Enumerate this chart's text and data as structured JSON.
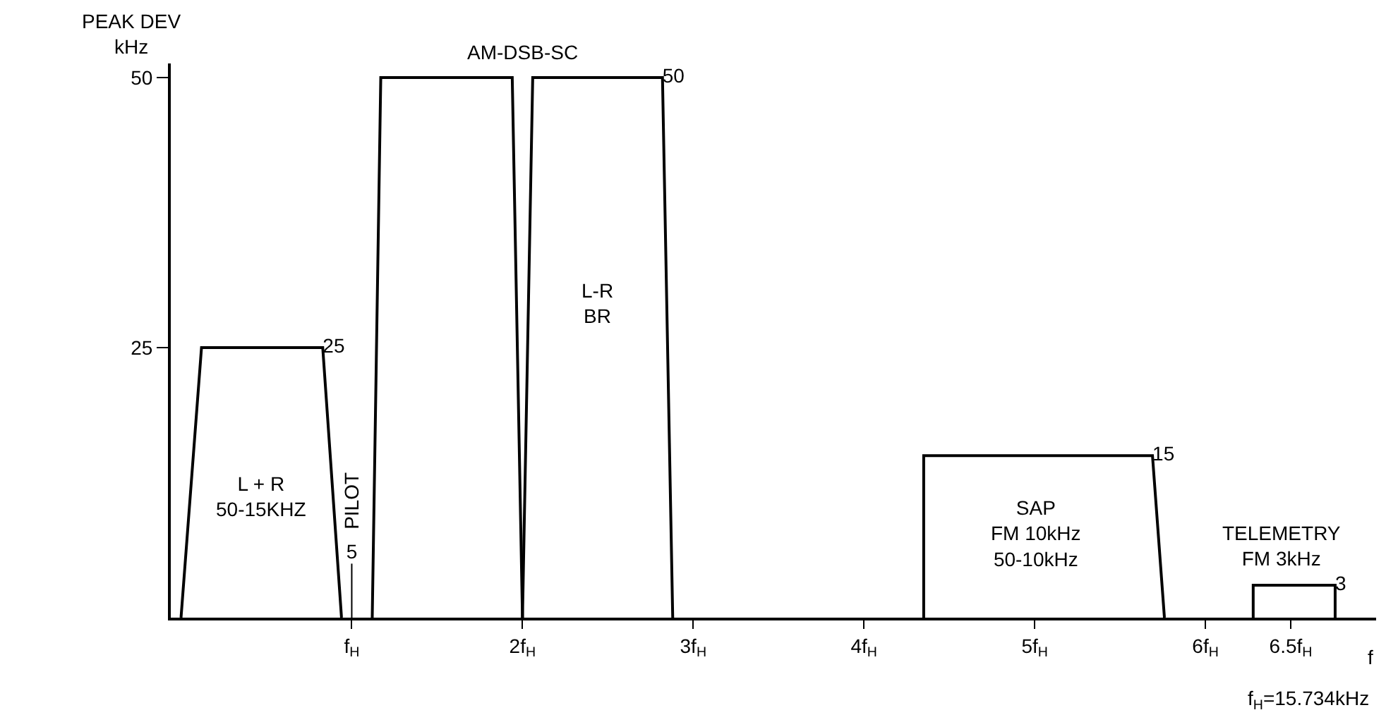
{
  "chart_data": {
    "type": "line",
    "ylabel": "PEAK DEV\nkHz",
    "xlabel": "f",
    "xlim": [
      -0.06,
      7.0
    ],
    "xticks": [
      {
        "value": 1,
        "label": "f$_{H}$"
      },
      {
        "value": 2,
        "label": "2f$_{H}$"
      },
      {
        "value": 3,
        "label": "3f$_{H}$"
      },
      {
        "value": 4,
        "label": "4f$_{H}$"
      },
      {
        "value": 5,
        "label": "5f$_{H}$"
      },
      {
        "value": 6,
        "label": "6f$_{H}$"
      },
      {
        "value": 6.5,
        "label": "6.5f$_{H}$"
      }
    ],
    "ylim": [
      0,
      51.3
    ],
    "yticks": [
      25,
      50
    ],
    "grid": false,
    "legend": false,
    "marker": "none",
    "line_style": "solid",
    "series": [
      {
        "color": "#000000",
        "x": [
          0,
          0.12,
          0.83,
          0.94
        ],
        "values": [
          0,
          25,
          25,
          0
        ],
        "value_labels": [
          null,
          null,
          "25",
          null
        ]
      },
      {
        "name": "PILOT",
        "color": "#000000",
        "x": [
          1.0,
          1.0
        ],
        "values": [
          0,
          5
        ],
        "value_labels": [
          null,
          "5"
        ]
      },
      {
        "color": "#000000",
        "x": [
          1.12,
          1.17,
          1.94,
          2.0
        ],
        "values": [
          0,
          50,
          50,
          0
        ],
        "value_labels": [
          null,
          null,
          null,
          null
        ]
      },
      {
        "color": "#000000",
        "x": [
          2.0,
          2.06,
          2.82,
          2.88
        ],
        "values": [
          0,
          50,
          50,
          0
        ],
        "value_labels": [
          null,
          null,
          "50",
          null
        ]
      },
      {
        "color": "#000000",
        "x": [
          4.35,
          4.35,
          5.69,
          5.76
        ],
        "values": [
          0,
          15,
          15,
          0
        ],
        "value_labels": [
          null,
          null,
          "15",
          null
        ]
      },
      {
        "color": "#000000",
        "x": [
          6.28,
          6.28,
          6.76,
          6.76
        ],
        "values": [
          0,
          3,
          3,
          0
        ],
        "value_labels": [
          null,
          null,
          "3",
          null
        ]
      }
    ],
    "annotations": [
      "AM-DSB-SC",
      "L + R\n50-15KHZ",
      "L-R\nBR",
      "SAP\nFM 10kHz\n50-10kHz",
      "TELEMETRY\nFM 3kHz",
      "f$_{H}$=15.734kHz"
    ]
  }
}
